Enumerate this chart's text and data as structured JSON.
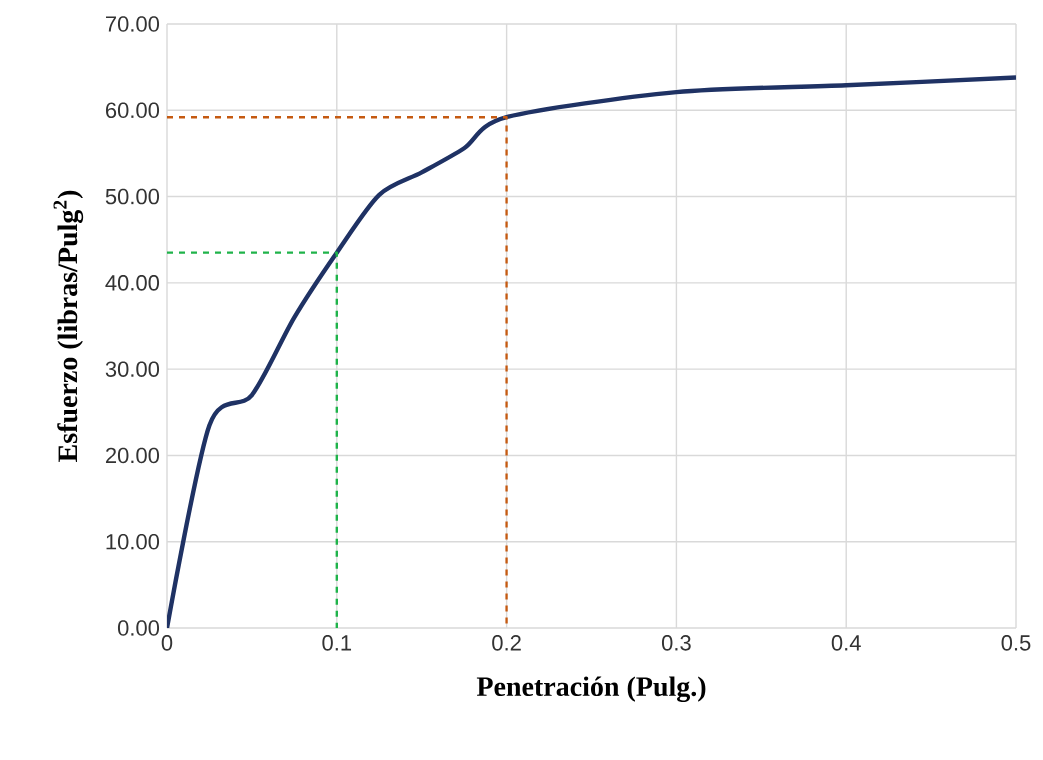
{
  "chart_data": {
    "type": "line",
    "xlabel": "Penetración (Pulg.)",
    "ylabel": "Esfuerzo (libras/Pulg$^{2}$)",
    "xlim": [
      0,
      0.5
    ],
    "ylim": [
      0,
      70
    ],
    "xticks": [
      0,
      0.1,
      0.2,
      0.3,
      0.4,
      0.5
    ],
    "yticks": [
      {
        "value": 0,
        "label": "0.00"
      },
      {
        "value": 10,
        "label": "10.00"
      },
      {
        "value": 20,
        "label": "20.00"
      },
      {
        "value": 30,
        "label": "30.00"
      },
      {
        "value": 40,
        "label": "40.00"
      },
      {
        "value": 50,
        "label": "50.00"
      },
      {
        "value": 60,
        "label": "60.00"
      },
      {
        "value": 70,
        "label": "70.00"
      }
    ],
    "grid": true,
    "marker": "none",
    "series": [
      {
        "color": "#1f3264",
        "line_style": "solid",
        "x": [
          0,
          0.025,
          0.05,
          0.075,
          0.1,
          0.125,
          0.15,
          0.175,
          0.2,
          0.3,
          0.4,
          0.5
        ],
        "values": [
          0,
          23.5,
          27,
          36,
          43.5,
          50.2,
          52.8,
          55.6,
          59.2,
          62.1,
          62.9,
          63.8
        ]
      },
      {
        "color": "#1fb34a",
        "line_style": "dashed",
        "x": [
          0,
          0.1,
          0.1
        ],
        "values": [
          43.5,
          43.5,
          0
        ]
      },
      {
        "color": "#c55a11",
        "line_style": "dashed",
        "x": [
          0,
          0.2,
          0.2
        ],
        "values": [
          59.2,
          59.2,
          0
        ]
      }
    ]
  }
}
